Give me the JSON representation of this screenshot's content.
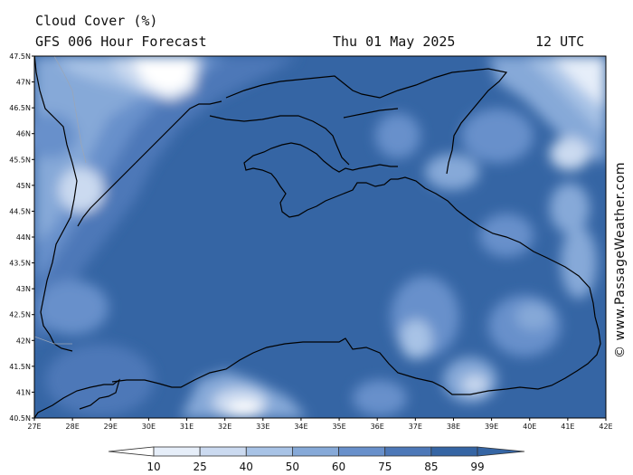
{
  "header": {
    "title": "Cloud Cover (%)",
    "subtitle": "GFS 006 Hour Forecast",
    "date": "Thu 01 May 2025",
    "time": "12 UTC"
  },
  "axes": {
    "lat_labels": [
      "47.5N",
      "47N",
      "46.5N",
      "46N",
      "45.5N",
      "45N",
      "44.5N",
      "44N",
      "43.5N",
      "43N",
      "42.5N",
      "42N",
      "41.5N",
      "41N",
      "40.5N"
    ],
    "lon_labels": [
      "27E",
      "28E",
      "29E",
      "30E",
      "31E",
      "32E",
      "33E",
      "34E",
      "35E",
      "36E",
      "37E",
      "38E",
      "39E",
      "40E",
      "41E",
      "42E"
    ]
  },
  "colorbar": {
    "levels": [
      "10",
      "25",
      "40",
      "50",
      "60",
      "75",
      "85",
      "99"
    ],
    "colors": [
      "#ffffff",
      "#e6eef9",
      "#cbdaf0",
      "#a8c3e6",
      "#86a9d8",
      "#6890cb",
      "#4d78b8",
      "#3565a4"
    ]
  },
  "watermark": "© www.PassageWeather.com",
  "colors": {
    "sea_overcast": "#3565a4",
    "coastline": "#000000"
  }
}
